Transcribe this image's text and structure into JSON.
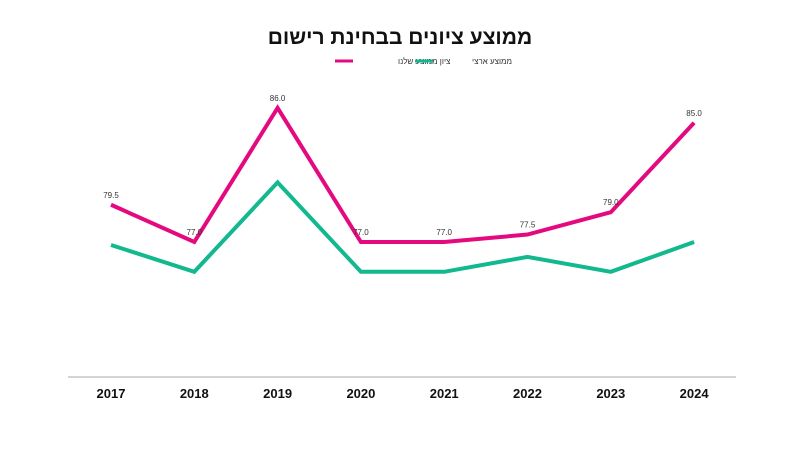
{
  "chart_data": {
    "type": "line",
    "title": "ממוצע ציונים בבחינת רישום",
    "xlabel": "",
    "ylabel": "",
    "categories": [
      "2017",
      "2018",
      "2019",
      "2020",
      "2021",
      "2022",
      "2023",
      "2024"
    ],
    "ylim": [
      68,
      90
    ],
    "grid": false,
    "legend_placement": "top-center",
    "series": [
      {
        "name": "ציון ממוצע שלנו",
        "color": "#e5097f",
        "values": [
          79.5,
          77.0,
          86.0,
          77.0,
          77.0,
          77.5,
          79.0,
          85.0
        ],
        "labels": [
          "79.5",
          "77.0",
          "86.0",
          "77.0",
          "77.0",
          "77.5",
          "79.0",
          "85.0"
        ]
      },
      {
        "name": "ממוצע ארצי",
        "color": "#12b88e",
        "values": [
          76.8,
          75.0,
          81.0,
          75.0,
          75.0,
          76.0,
          75.0,
          77.0
        ]
      }
    ]
  }
}
